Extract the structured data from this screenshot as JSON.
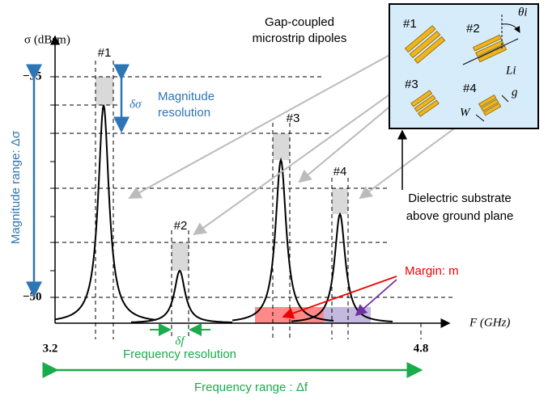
{
  "axis": {
    "y_label": "σ (dBsm)",
    "y_ticks": [
      "−35",
      "−50"
    ],
    "x_label": "F (GHz)",
    "x_ticks": [
      "3.2",
      "4.8"
    ]
  },
  "peaks": [
    "#1",
    "#2",
    "#3",
    "#4"
  ],
  "annotations": {
    "delta_sigma": "δσ",
    "magnitude_resolution": [
      "Magnitude",
      "resolution"
    ],
    "magnitude_range": "Magnitude range: Δσ",
    "delta_f": "δf",
    "frequency_resolution": "Frequency resolution",
    "frequency_range": "Frequency range : Δf",
    "margin": "Margin: m",
    "dipoles": [
      "Gap-coupled",
      "microstrip dipoles"
    ],
    "substrate": [
      "Dielectric substrate",
      "above ground plane"
    ]
  },
  "inset": {
    "labels": [
      "#1",
      "#2",
      "#3",
      "#4"
    ],
    "theta": "θi",
    "length": "Li",
    "width": "W",
    "gap": "g"
  }
}
